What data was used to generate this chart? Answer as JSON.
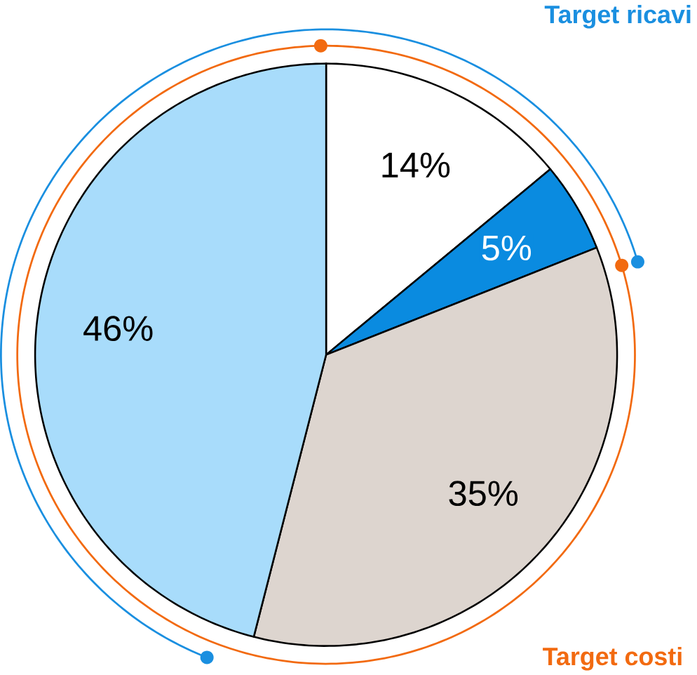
{
  "chart_data": {
    "type": "pie",
    "categories": [
      null,
      null,
      null,
      null
    ],
    "values": [
      14,
      5,
      35,
      46
    ],
    "colors": [
      "#ffffff",
      "#0a8be0",
      "#ddd5cf",
      "#a8dcfb"
    ],
    "value_labels": [
      "14%",
      "5%",
      "35%",
      "46%"
    ],
    "annotations": [
      "Target ricavi",
      "Target costi"
    ]
  }
}
